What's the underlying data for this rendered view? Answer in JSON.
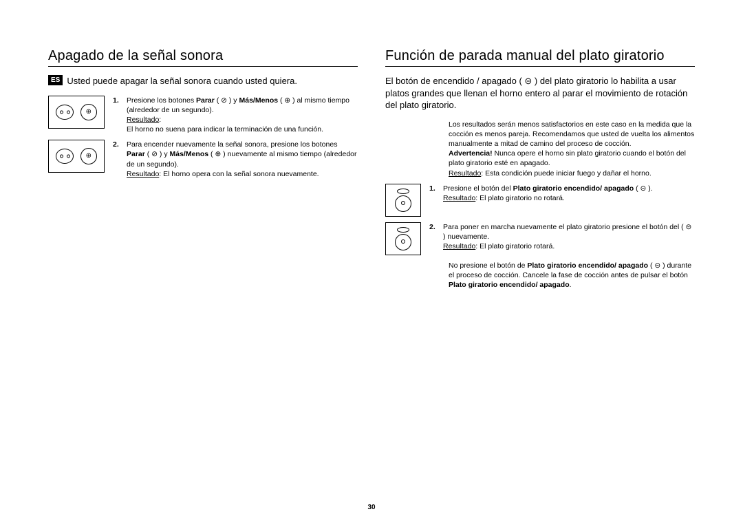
{
  "page_number": "30",
  "lang_tag": "ES",
  "left": {
    "title": "Apagado de la señal sonora",
    "intro": "Usted puede apagar la señal sonora cuando usted quiera.",
    "steps": [
      {
        "num": "1.",
        "text_pre": "Presione los botones ",
        "bold1": "Parar",
        "text_mid": "  ( ⊘ ) y ",
        "bold2": "Más/Menos",
        "text_post": " ( ⊕ )  al mismo tiempo  (alrededor de un segundo).",
        "result_label": "Resultado",
        "result_text": ":\nEl horno no suena para indicar la terminación de una función."
      },
      {
        "num": "2.",
        "text_pre": "Para encender nuevamente la señal sonora, presione los botones ",
        "bold1": "Parar",
        "text_mid": " ( ⊘ ) y ",
        "bold2": "Más/Menos",
        "text_post": " ( ⊕ ) nuevamente al mismo tiempo (alrededor de un segundo).",
        "result_label": "Resultado",
        "result_text": ": El horno opera con la señal sonora nuevamente."
      }
    ]
  },
  "right": {
    "title": "Función de parada manual del plato giratorio",
    "intro": "El botón de encendido / apagado ( ⊝ ) del plato giratorio lo habilita a usar platos grandes que llenan el horno entero al parar el movimiento de rotación del plato giratorio.",
    "note1": "Los resultados serán menos satisfactorios en este caso en la medida que la  cocción es menos pareja. Recomendamos que usted de vuelta los alimentos manualmente a mitad de camino del proceso de cocción.",
    "warn_label": "Advertencia!",
    "warn_text": " Nunca opere el horno sin plato giratorio cuando el botón del plato giratorio esté en apagado.",
    "result_label": "Resultado",
    "result_text": ": Esta condición puede iniciar fuego y dañar el horno.",
    "steps": [
      {
        "num": "1.",
        "text_pre": "Presione el botón del ",
        "bold1": "Plato giratorio encendido/ apagado",
        "text_post": " ( ⊝ ).",
        "result_label": "Resultado",
        "result_text": ": El plato giratorio no rotará."
      },
      {
        "num": "2.",
        "text_pre": "Para poner en marcha nuevamente el plato giratorio presione el botón del ( ⊝ )  nuevamente.",
        "result_label": "Resultado",
        "result_text": ": El plato giratorio  rotará."
      }
    ],
    "footer_pre": "No presione el botón de ",
    "footer_bold1": "Plato giratorio encendido/ apagado",
    "footer_mid": " ( ⊝ ) durante el proceso de cocción. Cancele la fase de cocción antes de pulsar el botón ",
    "footer_bold2": "Plato giratorio encendido/ apagado",
    "footer_post": "."
  }
}
